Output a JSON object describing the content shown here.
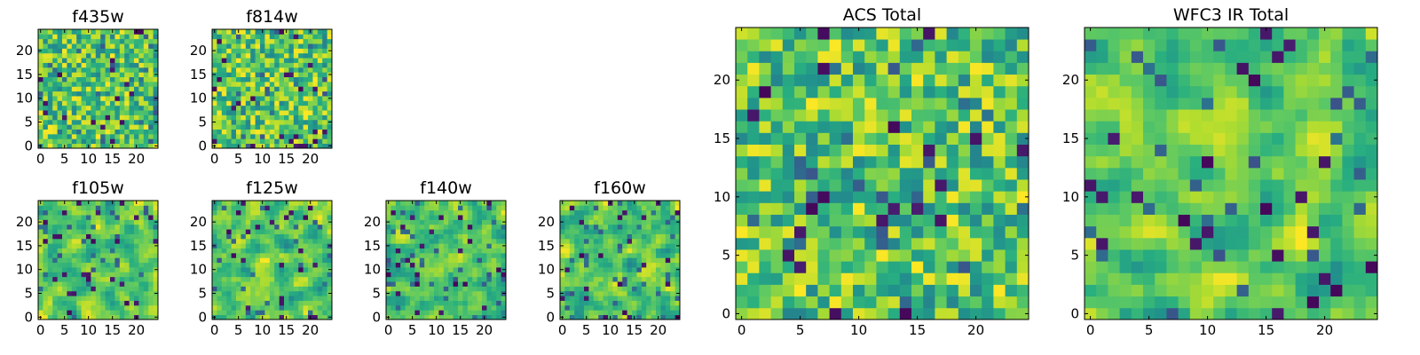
{
  "chart_data": [
    {
      "type": "heatmap",
      "title": "f435w",
      "xlabel": "",
      "ylabel": "",
      "xlim": [
        -0.5,
        24.5
      ],
      "ylim": [
        -0.5,
        24.5
      ],
      "xticks": [
        0,
        5,
        10,
        15,
        20
      ],
      "yticks": [
        0,
        5,
        10,
        15,
        20
      ],
      "grid_size": [
        25,
        25
      ],
      "colormap": "viridis",
      "seed": 11,
      "smooth": 0
    },
    {
      "type": "heatmap",
      "title": "f814w",
      "xlabel": "",
      "ylabel": "",
      "xlim": [
        -0.5,
        24.5
      ],
      "ylim": [
        -0.5,
        24.5
      ],
      "xticks": [
        0,
        5,
        10,
        15,
        20
      ],
      "yticks": [
        0,
        5,
        10,
        15,
        20
      ],
      "grid_size": [
        25,
        25
      ],
      "colormap": "viridis",
      "seed": 23,
      "smooth": 0
    },
    {
      "type": "heatmap",
      "title": "f105w",
      "xlabel": "",
      "ylabel": "",
      "xlim": [
        -0.5,
        24.5
      ],
      "ylim": [
        -0.5,
        24.5
      ],
      "xticks": [
        0,
        5,
        10,
        15,
        20
      ],
      "yticks": [
        0,
        5,
        10,
        15,
        20
      ],
      "grid_size": [
        25,
        25
      ],
      "colormap": "viridis",
      "seed": 37,
      "smooth": 1
    },
    {
      "type": "heatmap",
      "title": "f125w",
      "xlabel": "",
      "ylabel": "",
      "xlim": [
        -0.5,
        24.5
      ],
      "ylim": [
        -0.5,
        24.5
      ],
      "xticks": [
        0,
        5,
        10,
        15,
        20
      ],
      "yticks": [
        0,
        5,
        10,
        15,
        20
      ],
      "grid_size": [
        25,
        25
      ],
      "colormap": "viridis",
      "seed": 41,
      "smooth": 1
    },
    {
      "type": "heatmap",
      "title": "f140w",
      "xlabel": "",
      "ylabel": "",
      "xlim": [
        -0.5,
        24.5
      ],
      "ylim": [
        -0.5,
        24.5
      ],
      "xticks": [
        0,
        5,
        10,
        15,
        20
      ],
      "yticks": [
        0,
        5,
        10,
        15,
        20
      ],
      "grid_size": [
        25,
        25
      ],
      "colormap": "viridis",
      "seed": 53,
      "smooth": 1
    },
    {
      "type": "heatmap",
      "title": "f160w",
      "xlabel": "",
      "ylabel": "",
      "xlim": [
        -0.5,
        24.5
      ],
      "ylim": [
        -0.5,
        24.5
      ],
      "xticks": [
        0,
        5,
        10,
        15,
        20
      ],
      "yticks": [
        0,
        5,
        10,
        15,
        20
      ],
      "grid_size": [
        25,
        25
      ],
      "colormap": "viridis",
      "seed": 67,
      "smooth": 1
    },
    {
      "type": "heatmap",
      "title": "ACS Total",
      "xlabel": "",
      "ylabel": "",
      "xlim": [
        -0.5,
        24.5
      ],
      "ylim": [
        -0.5,
        24.5
      ],
      "xticks": [
        0,
        5,
        10,
        15,
        20
      ],
      "yticks": [
        0,
        5,
        10,
        15,
        20
      ],
      "grid_size": [
        25,
        25
      ],
      "colormap": "viridis",
      "seed": 79,
      "smooth": 0
    },
    {
      "type": "heatmap",
      "title": "WFC3 IR Total",
      "xlabel": "",
      "ylabel": "",
      "xlim": [
        -0.5,
        24.5
      ],
      "ylim": [
        -0.5,
        24.5
      ],
      "xticks": [
        0,
        5,
        10,
        15,
        20
      ],
      "yticks": [
        0,
        5,
        10,
        15,
        20
      ],
      "grid_size": [
        25,
        25
      ],
      "colormap": "viridis",
      "seed": 97,
      "smooth": 1
    }
  ]
}
